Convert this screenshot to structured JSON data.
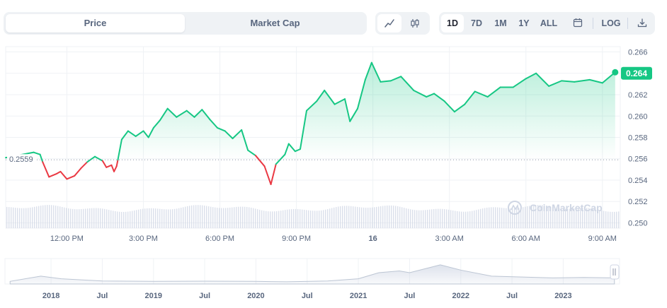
{
  "toolbar": {
    "tabs": [
      {
        "label": "Price",
        "active": true
      },
      {
        "label": "Market Cap",
        "active": false
      }
    ],
    "chart_types": [
      {
        "icon": "line-chart-icon",
        "active": true
      },
      {
        "icon": "candlestick-icon",
        "active": false
      }
    ],
    "ranges": [
      {
        "label": "1D",
        "active": true
      },
      {
        "label": "7D",
        "active": false
      },
      {
        "label": "1M",
        "active": false
      },
      {
        "label": "1Y",
        "active": false
      },
      {
        "label": "ALL",
        "active": false
      }
    ],
    "calendar_icon": "calendar-icon",
    "log_label": "LOG",
    "download_icon": "download-icon"
  },
  "watermark": "CoinMarketCap",
  "colors": {
    "up": "#16c784",
    "down": "#ea3943",
    "axis_text": "#58667e",
    "grid": "#eff2f5",
    "volume": "#cfd6e4",
    "navigator": "#d6dce5"
  },
  "chart_data": {
    "type": "line",
    "y_axis": {
      "ticks": [
        "0.250",
        "0.252",
        "0.254",
        "0.256",
        "0.258",
        "0.260",
        "0.262",
        "0.264",
        "0.266"
      ],
      "range": [
        0.2495,
        0.2665
      ]
    },
    "x_axis": {
      "ticks": [
        "12:00 PM",
        "3:00 PM",
        "6:00 PM",
        "9:00 PM",
        "16",
        "3:00 AM",
        "6:00 AM",
        "9:00 AM"
      ],
      "tick_hours": [
        12,
        15,
        18,
        21,
        24,
        27,
        30,
        33
      ],
      "range_hours": [
        9.6,
        33.7
      ]
    },
    "reference_price": 0.2559,
    "reference_label": "0.2559",
    "current_price": 0.264,
    "current_label": "0.264",
    "series": [
      {
        "x": [
          9.6,
          10.7,
          10.95,
          11.05,
          11.3,
          11.6,
          11.75,
          12.0,
          12.3,
          12.55,
          12.8,
          13.1,
          13.4,
          13.55,
          13.75,
          13.85,
          13.95,
          14.0,
          14.15,
          14.4,
          14.7,
          15.0,
          15.2,
          15.4,
          15.65,
          15.95,
          16.3,
          16.7,
          17.0,
          17.3,
          17.6,
          17.9,
          18.2,
          18.5,
          18.85,
          19.1,
          19.4,
          19.75,
          20.0,
          20.2,
          20.55,
          20.7,
          20.95,
          21.15,
          21.4,
          21.8,
          22.1,
          22.5,
          22.9,
          23.1,
          23.4,
          23.7,
          23.95,
          24.3,
          24.7,
          25.1,
          25.6,
          26.1,
          26.4,
          26.8,
          27.2,
          27.6,
          28.0,
          28.5,
          29.0,
          29.5,
          30.0,
          30.4,
          30.9,
          31.4,
          31.9,
          32.5,
          33.0,
          33.5
        ],
        "y": [
          0.2561,
          0.2566,
          0.2564,
          0.2557,
          0.2543,
          0.2546,
          0.2548,
          0.2541,
          0.2544,
          0.2551,
          0.2557,
          0.2562,
          0.2558,
          0.2552,
          0.2554,
          0.2548,
          0.2553,
          0.2559,
          0.2578,
          0.2586,
          0.2581,
          0.2586,
          0.258,
          0.2589,
          0.2596,
          0.2607,
          0.2599,
          0.2605,
          0.2599,
          0.2606,
          0.2597,
          0.2589,
          0.2586,
          0.2579,
          0.2587,
          0.2568,
          0.2563,
          0.2553,
          0.2536,
          0.2555,
          0.2564,
          0.2574,
          0.2567,
          0.2569,
          0.2605,
          0.2614,
          0.2624,
          0.2611,
          0.2616,
          0.2595,
          0.2607,
          0.2634,
          0.265,
          0.2632,
          0.2633,
          0.2637,
          0.2624,
          0.2618,
          0.2621,
          0.2614,
          0.2604,
          0.2611,
          0.2623,
          0.2618,
          0.2627,
          0.2627,
          0.2635,
          0.264,
          0.2628,
          0.2633,
          0.2632,
          0.2634,
          0.2631,
          0.2641
        ]
      }
    ],
    "navigator": {
      "ticks": [
        "2018",
        "Jul",
        "2019",
        "Jul",
        "2020",
        "Jul",
        "2021",
        "Jul",
        "2022",
        "Jul",
        "2023"
      ],
      "tick_years": [
        2018.0,
        2018.5,
        2019.0,
        2019.5,
        2020.0,
        2020.5,
        2021.0,
        2021.5,
        2022.0,
        2022.5,
        2023.0
      ],
      "range_years": [
        2017.55,
        2023.55
      ],
      "x": [
        2017.6,
        2017.9,
        2018.1,
        2018.5,
        2019.0,
        2019.5,
        2020.0,
        2020.3,
        2020.7,
        2021.0,
        2021.2,
        2021.4,
        2021.5,
        2021.7,
        2021.8,
        2022.0,
        2022.3,
        2022.6,
        2022.9,
        2023.2,
        2023.5
      ],
      "y": [
        0.3,
        0.9,
        0.6,
        0.35,
        0.3,
        0.32,
        0.3,
        0.25,
        0.35,
        0.6,
        1.3,
        1.5,
        1.3,
        1.9,
        2.2,
        1.6,
        0.9,
        0.8,
        0.7,
        0.75,
        0.7
      ]
    }
  }
}
